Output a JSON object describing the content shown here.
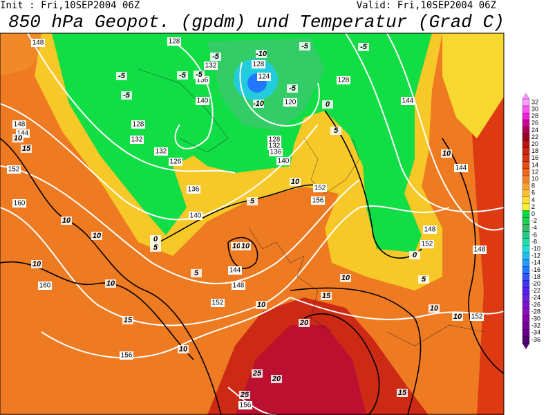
{
  "header": {
    "init": "Init : Fri,10SEP2004 06Z",
    "valid": "Valid: Fri,10SEP2004 06Z",
    "title": "850 hPa Geopot. (gpdm) und Temperatur (Grad C)"
  },
  "map": {
    "geopotential_labels": [
      148,
      128,
      132,
      136,
      128,
      124,
      128,
      120,
      140,
      128,
      132,
      132,
      126,
      128,
      132,
      136,
      140,
      136,
      140,
      148,
      144,
      152,
      160,
      144,
      148,
      152,
      160,
      156,
      152,
      156,
      144,
      144,
      148,
      152,
      148,
      152,
      156
    ],
    "temperature_labels": [
      -5,
      -10,
      -5,
      -5,
      -5,
      -5,
      -5,
      -5,
      -10,
      -5,
      0,
      5,
      10,
      15,
      10,
      10,
      10,
      10,
      0,
      5,
      10,
      10,
      5,
      5,
      10,
      10,
      10,
      15,
      15,
      10,
      20,
      25,
      20,
      25,
      15,
      10,
      10,
      10,
      0,
      5
    ]
  },
  "colorbar": {
    "levels": [
      32,
      30,
      28,
      26,
      24,
      22,
      20,
      18,
      16,
      14,
      12,
      10,
      8,
      6,
      4,
      2,
      0,
      -2,
      -4,
      -6,
      -8,
      -10,
      -12,
      -14,
      -16,
      -18,
      -20,
      -22,
      -24,
      -26,
      -28,
      -30,
      -32,
      -34,
      -36
    ],
    "colors": [
      "#ff99ff",
      "#ff55ee",
      "#ee22dd",
      "#cc0099",
      "#aa0055",
      "#990022",
      "#bb1111",
      "#cc2211",
      "#dd3311",
      "#e84a10",
      "#f0661a",
      "#f5822a",
      "#f8a030",
      "#fbc030",
      "#fde030",
      "#f8f030",
      "#00dd44",
      "#22cc55",
      "#33bb66",
      "#22cc88",
      "#22ddaa",
      "#22dddd",
      "#22bbee",
      "#2299ff",
      "#2277ff",
      "#3355ff",
      "#4433ff",
      "#5522ee",
      "#6622dd",
      "#7711cc",
      "#8811bb",
      "#8800aa",
      "#770099",
      "#660088",
      "#550077"
    ]
  }
}
